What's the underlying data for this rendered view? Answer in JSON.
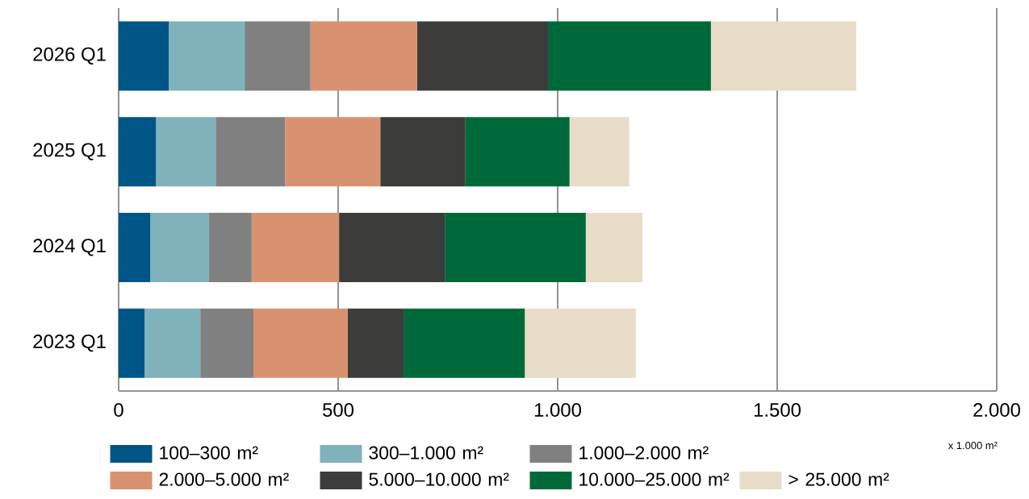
{
  "chart_data": {
    "type": "bar",
    "orientation": "horizontal",
    "stacked": true,
    "categories": [
      "2026 Q1",
      "2025 Q1",
      "2024 Q1",
      "2023 Q1"
    ],
    "series": [
      {
        "name": "100–300 m²",
        "color": "#005587",
        "values": [
          114,
          85,
          72,
          59
        ]
      },
      {
        "name": "300–1.000 m²",
        "color": "#7fb2ba",
        "values": [
          173,
          136,
          134,
          127
        ]
      },
      {
        "name": "1.000–2.000 m²",
        "color": "#808080",
        "values": [
          150,
          158,
          97,
          121
        ]
      },
      {
        "name": "2.000–5.000 m²",
        "color": "#d99270",
        "values": [
          243,
          217,
          199,
          215
        ]
      },
      {
        "name": "5.000–10.000 m²",
        "color": "#3c3c3b",
        "values": [
          298,
          194,
          241,
          127
        ]
      },
      {
        "name": "10.000–25.000 m²",
        "color": "#00693a",
        "values": [
          371,
          237,
          321,
          276
        ]
      },
      {
        "name": "> 25.000 m²",
        "color": "#e7dcc8",
        "values": [
          331,
          136,
          129,
          253
        ]
      }
    ],
    "xlim": [
      0,
      2000
    ],
    "xticks": [
      0,
      500,
      {
        "value": 1000,
        "label": "1.000"
      },
      {
        "value": 1500,
        "label": "1.500"
      },
      {
        "value": 2000,
        "label": "2.000"
      }
    ],
    "xlabel": "x 1.000 m²",
    "grid": "x",
    "legend": "bottom"
  }
}
